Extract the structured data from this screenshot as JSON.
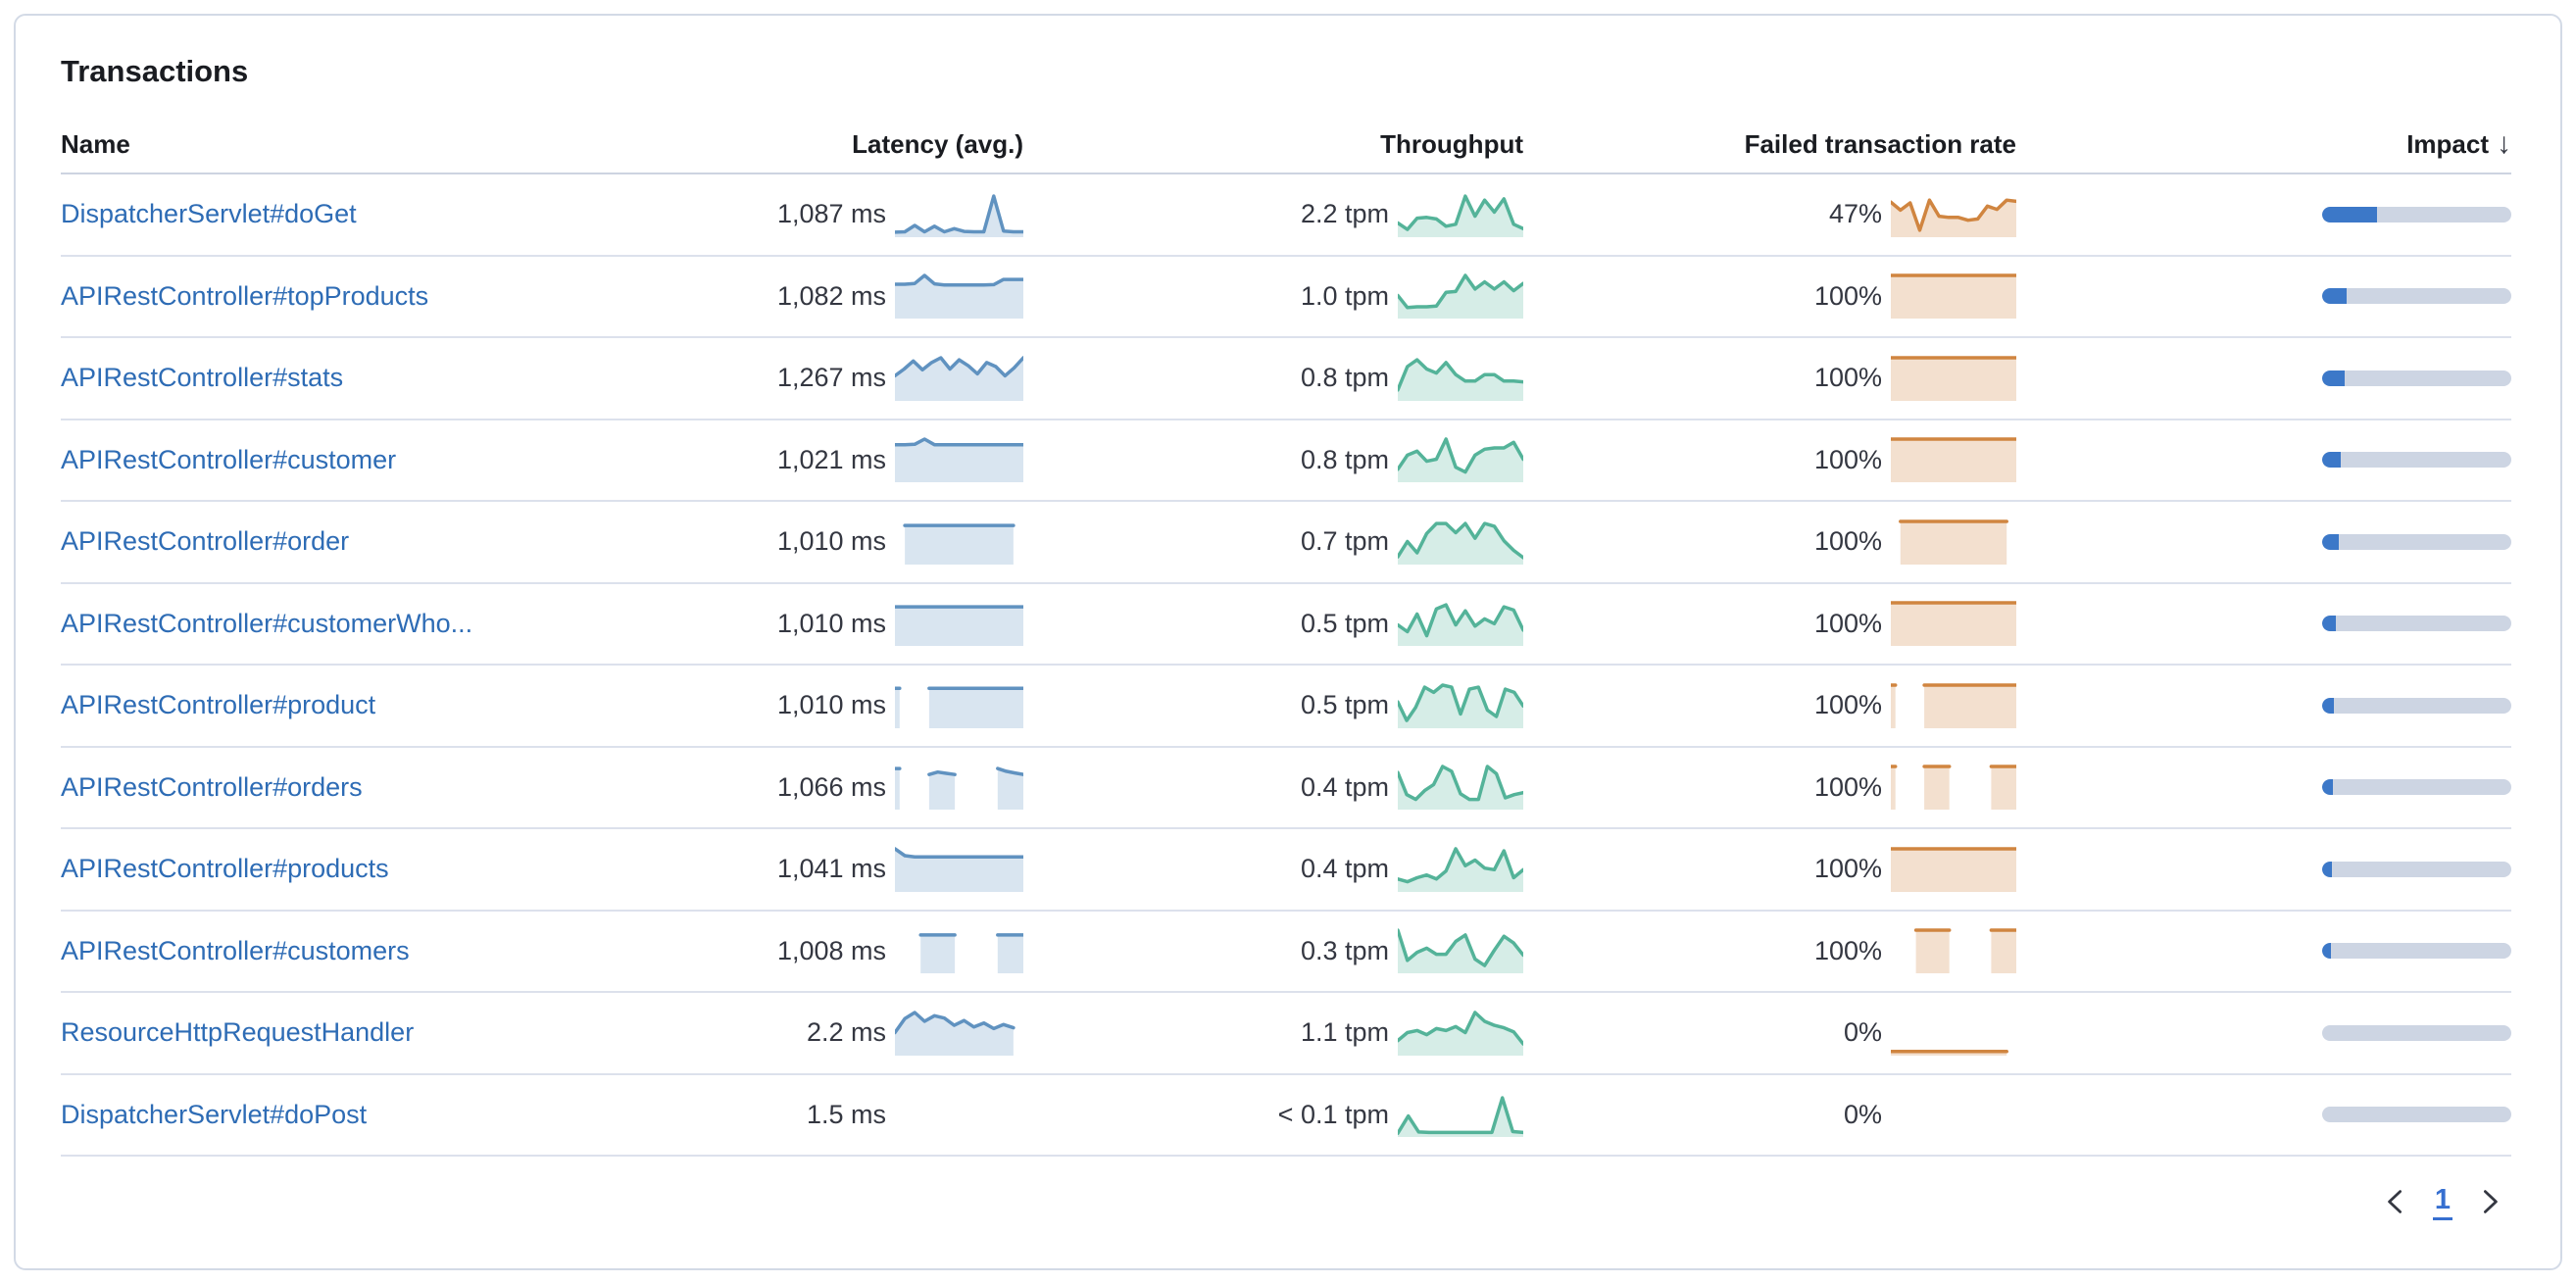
{
  "panel": {
    "title": "Transactions"
  },
  "table": {
    "columns": {
      "name": "Name",
      "latency": "Latency (avg.)",
      "throughput": "Throughput",
      "failed_rate": "Failed transaction rate",
      "impact": "Impact"
    },
    "sort_icon": "↓",
    "rows": [
      {
        "name": "DispatcherServlet#doGet",
        "latency": "1,087 ms",
        "throughput": "2.2 tpm",
        "failed_rate": "47%",
        "impact_pct": 29,
        "latency_spark": [
          0.05,
          0.06,
          0.22,
          0.06,
          0.2,
          0.06,
          0.14,
          0.07,
          0.06,
          0.06,
          0.95,
          0.08,
          0.06,
          0.06
        ],
        "throughput_spark": [
          0.28,
          0.12,
          0.4,
          0.42,
          0.38,
          0.2,
          0.25,
          0.95,
          0.45,
          0.85,
          0.55,
          0.88,
          0.25,
          0.14
        ],
        "failed_spark": [
          0.8,
          0.6,
          0.78,
          0.1,
          0.85,
          0.45,
          0.42,
          0.42,
          0.35,
          0.38,
          0.7,
          0.62,
          0.85,
          0.82
        ]
      },
      {
        "name": "APIRestController#topProducts",
        "latency": "1,082 ms",
        "throughput": "1.0 tpm",
        "failed_rate": "100%",
        "impact_pct": 13,
        "latency_spark": [
          0.78,
          0.78,
          0.8,
          1.0,
          0.79,
          0.76,
          0.76,
          0.76,
          0.76,
          0.76,
          0.77,
          0.9,
          0.9,
          0.9
        ],
        "throughput_spark": [
          0.5,
          0.2,
          0.22,
          0.22,
          0.24,
          0.58,
          0.6,
          1.0,
          0.66,
          0.84,
          0.66,
          0.84,
          0.62,
          0.8
        ],
        "failed_spark": [
          1,
          1,
          1,
          1,
          1,
          1,
          1,
          1,
          1,
          1,
          1,
          1,
          1,
          1
        ]
      },
      {
        "name": "APIRestController#stats",
        "latency": "1,267 ms",
        "throughput": "0.8 tpm",
        "failed_rate": "100%",
        "impact_pct": 12,
        "latency_spark": [
          0.55,
          0.72,
          0.92,
          0.7,
          0.88,
          1.0,
          0.72,
          0.95,
          0.8,
          0.6,
          0.88,
          0.78,
          0.55,
          0.75,
          1.0
        ],
        "throughput_spark": [
          0.2,
          0.78,
          0.95,
          0.72,
          0.62,
          0.88,
          0.58,
          0.42,
          0.42,
          0.58,
          0.58,
          0.42,
          0.42,
          0.4
        ],
        "failed_spark": [
          1,
          1,
          1,
          1,
          1,
          1,
          1,
          1,
          1,
          1,
          1,
          1,
          1,
          1
        ]
      },
      {
        "name": "APIRestController#customer",
        "latency": "1,021 ms",
        "throughput": "0.8 tpm",
        "failed_rate": "100%",
        "impact_pct": 10,
        "latency_spark": [
          0.86,
          0.86,
          0.87,
          1.0,
          0.86,
          0.86,
          0.86,
          0.86,
          0.86,
          0.86,
          0.86,
          0.86,
          0.86,
          0.86
        ],
        "throughput_spark": [
          0.25,
          0.6,
          0.7,
          0.45,
          0.5,
          1.0,
          0.3,
          0.18,
          0.6,
          0.75,
          0.78,
          0.78,
          0.92,
          0.5
        ],
        "failed_spark": [
          1,
          1,
          1,
          1,
          1,
          1,
          1,
          1,
          1,
          1,
          1,
          1,
          1,
          1
        ]
      },
      {
        "name": "APIRestController#order",
        "latency": "1,010 ms",
        "throughput": "0.7 tpm",
        "failed_rate": "100%",
        "impact_pct": 9,
        "latency_spark": [
          null,
          0.9,
          0.9,
          0.9,
          0.9,
          0.9,
          0.9,
          0.9,
          0.9,
          0.9,
          0.9,
          0.9,
          0.9,
          null
        ],
        "throughput_spark": [
          0.12,
          0.5,
          0.22,
          0.7,
          0.95,
          0.95,
          0.72,
          0.95,
          0.58,
          0.95,
          0.88,
          0.52,
          0.28,
          0.1
        ],
        "failed_spark": [
          null,
          1,
          1,
          1,
          1,
          1,
          1,
          1,
          1,
          1,
          1,
          1,
          1,
          null
        ]
      },
      {
        "name": "APIRestController#customerWho...",
        "latency": "1,010 ms",
        "throughput": "0.5 tpm",
        "failed_rate": "100%",
        "impact_pct": 7,
        "latency_spark": [
          0.9,
          0.9,
          0.9,
          0.9,
          0.9,
          0.9,
          0.9,
          0.9,
          0.9,
          0.9,
          0.9,
          0.9,
          0.9,
          0.9
        ],
        "throughput_spark": [
          0.45,
          0.28,
          0.72,
          0.18,
          0.85,
          0.95,
          0.45,
          0.8,
          0.42,
          0.6,
          0.48,
          0.9,
          0.82,
          0.32
        ],
        "failed_spark": [
          1,
          1,
          1,
          1,
          1,
          1,
          1,
          1,
          1,
          1,
          1,
          1,
          1,
          1
        ]
      },
      {
        "name": "APIRestController#product",
        "latency": "1,010 ms",
        "throughput": "0.5 tpm",
        "failed_rate": "100%",
        "impact_pct": 6,
        "latency_spark": [
          0.92,
          null,
          null,
          null,
          0.92,
          0.92,
          0.92,
          0.92,
          0.92,
          0.92,
          0.92,
          0.92,
          0.92,
          0.92,
          0.92,
          0.92
        ],
        "throughput_spark": [
          0.58,
          0.12,
          0.45,
          0.95,
          0.82,
          1.0,
          0.95,
          0.28,
          0.9,
          0.95,
          0.38,
          0.22,
          0.9,
          0.82,
          0.48
        ],
        "failed_spark": [
          1,
          null,
          null,
          null,
          1,
          1,
          1,
          1,
          1,
          1,
          1,
          1,
          1,
          1,
          1,
          1
        ]
      },
      {
        "name": "APIRestController#orders",
        "latency": "1,066 ms",
        "throughput": "0.4 tpm",
        "failed_rate": "100%",
        "impact_pct": 5.5,
        "latency_spark": [
          0.95,
          null,
          null,
          null,
          0.8,
          0.86,
          0.83,
          0.8,
          null,
          null,
          null,
          null,
          0.95,
          0.88,
          0.84,
          0.8
        ],
        "throughput_spark": [
          0.85,
          0.3,
          0.18,
          0.4,
          0.55,
          1.0,
          0.88,
          0.32,
          0.18,
          0.18,
          1.0,
          0.82,
          0.22,
          0.3,
          0.35
        ],
        "failed_spark": [
          1,
          null,
          null,
          null,
          1,
          1,
          1,
          1,
          null,
          null,
          null,
          null,
          1,
          1,
          1,
          1
        ]
      },
      {
        "name": "APIRestController#products",
        "latency": "1,041 ms",
        "throughput": "0.4 tpm",
        "failed_rate": "100%",
        "impact_pct": 5,
        "latency_spark": [
          1.0,
          0.83,
          0.8,
          0.8,
          0.8,
          0.8,
          0.8,
          0.8,
          0.8,
          0.8,
          0.8,
          0.8,
          0.8,
          0.8
        ],
        "throughput_spark": [
          0.25,
          0.18,
          0.28,
          0.35,
          0.25,
          0.45,
          1.0,
          0.58,
          0.72,
          0.52,
          0.48,
          0.95,
          0.28,
          0.48
        ],
        "failed_spark": [
          1,
          1,
          1,
          1,
          1,
          1,
          1,
          1,
          1,
          1,
          1,
          1,
          1,
          1
        ]
      },
      {
        "name": "APIRestController#customers",
        "latency": "1,008 ms",
        "throughput": "0.3 tpm",
        "failed_rate": "100%",
        "impact_pct": 4.5,
        "latency_spark": [
          null,
          null,
          null,
          0.88,
          0.88,
          0.88,
          0.88,
          0.88,
          null,
          null,
          null,
          null,
          0.88,
          0.88,
          0.88,
          0.88
        ],
        "throughput_spark": [
          1.0,
          0.25,
          0.45,
          0.55,
          0.4,
          0.4,
          0.72,
          0.88,
          0.28,
          0.12,
          0.5,
          0.85,
          0.68,
          0.38
        ],
        "failed_spark": [
          null,
          null,
          null,
          1,
          1,
          1,
          1,
          1,
          null,
          null,
          null,
          null,
          1,
          1,
          1,
          1
        ]
      },
      {
        "name": "ResourceHttpRequestHandler",
        "latency": "2.2 ms",
        "throughput": "1.1 tpm",
        "failed_rate": "0%",
        "impact_pct": 0,
        "latency_spark": [
          0.5,
          0.85,
          1.0,
          0.78,
          0.92,
          0.86,
          0.68,
          0.8,
          0.64,
          0.74,
          0.6,
          0.7,
          0.62,
          null
        ],
        "throughput_spark": [
          0.3,
          0.5,
          0.55,
          0.45,
          0.6,
          0.55,
          0.65,
          0.5,
          1.0,
          0.78,
          0.68,
          0.62,
          0.52,
          0.22
        ],
        "failed_spark": [
          0.03,
          0.03,
          0.03,
          0.03,
          0.03,
          0.03,
          0.03,
          0.03,
          0.03,
          0.03,
          0.03,
          0.03,
          0.03,
          null
        ]
      },
      {
        "name": "DispatcherServlet#doPost",
        "latency": "1.5 ms",
        "throughput": "< 0.1 tpm",
        "failed_rate": "0%",
        "impact_pct": 0,
        "latency_spark": [],
        "throughput_spark": [
          0.02,
          0.45,
          0.05,
          0.04,
          0.04,
          0.04,
          0.04,
          0.04,
          0.04,
          0.04,
          0.9,
          0.06,
          0.04
        ],
        "failed_spark": []
      }
    ]
  },
  "pagination": {
    "page": "1"
  },
  "colors": {
    "link": "#2E6CB5",
    "text": "#343741",
    "latency_line": "#6092C0",
    "latency_fill": "rgba(96,146,192,0.24)",
    "throughput_line": "#54B399",
    "throughput_fill": "rgba(84,179,153,0.24)",
    "failed_line": "#D08540",
    "failed_fill": "rgba(208,133,64,0.25)",
    "impact_fill": "#3C78C8",
    "impact_track": "#CDD5E3"
  }
}
